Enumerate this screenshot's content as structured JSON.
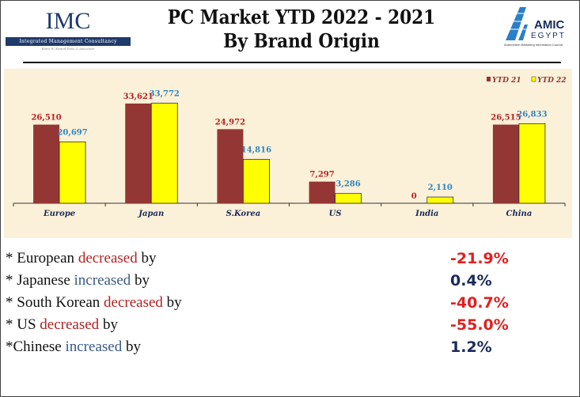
{
  "header": {
    "title_line1": "PC Market YTD 2022 - 2021",
    "title_line2": "By Brand Origin",
    "imc_logo": {
      "abbr": "IMC",
      "name": "Integrated Management Consultancy",
      "tagline": "Rami W. Kamal Doss & Associate"
    },
    "amic_logo": {
      "top": "AMIC",
      "bottom": "EGYPT",
      "caption": "Automotive Marketing Information Council"
    }
  },
  "colors": {
    "ytd21": "#943634",
    "ytd22": "#ffff00",
    "label21": "#b22222",
    "label22": "#2e86c1"
  },
  "chart_data": {
    "type": "bar",
    "categories": [
      "Europe",
      "Japan",
      "S.Korea",
      "US",
      "India",
      "China"
    ],
    "series": [
      {
        "name": "YTD 21",
        "values": [
          26510,
          33621,
          24972,
          7297,
          0,
          26515
        ],
        "labels": [
          "26,510",
          "33,621",
          "24,972",
          "7,297",
          "0",
          "26,515"
        ]
      },
      {
        "name": "YTD 22",
        "values": [
          20697,
          33772,
          14816,
          3286,
          2110,
          26833
        ],
        "labels": [
          "20,697",
          "33,772",
          "14,816",
          "3,286",
          "2,110",
          "26,833"
        ]
      }
    ],
    "legend": "top-right",
    "grid": false,
    "ylim": [
      0,
      40000
    ]
  },
  "summary": [
    {
      "prefix": "* European ",
      "verb": "decreased",
      "suffix": " by",
      "value": "-21.9%",
      "dir": "neg"
    },
    {
      "prefix": "* Japanese ",
      "verb": "increased",
      "suffix": " by",
      "value": "0.4%",
      "dir": "pos"
    },
    {
      "prefix": "* South Korean ",
      "verb": "decreased",
      "suffix": " by",
      "value": "-40.7%",
      "dir": "neg"
    },
    {
      "prefix": "* US ",
      "verb": "decreased",
      "suffix": " by",
      "value": "-55.0%",
      "dir": "neg"
    },
    {
      "prefix": "*Chinese ",
      "verb": "increased",
      "suffix": " by",
      "value": "1.2%",
      "dir": "pos"
    }
  ]
}
